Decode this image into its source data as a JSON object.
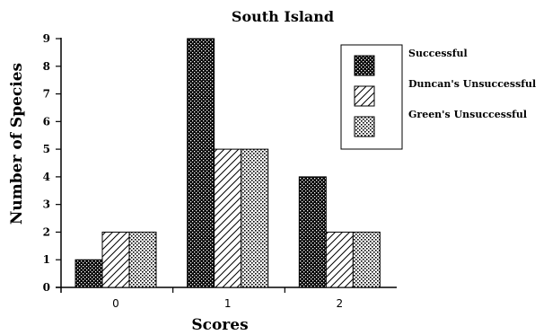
{
  "chart_data": {
    "type": "bar",
    "title": "South Island",
    "xlabel": "Scores",
    "ylabel": "Number of Species",
    "categories": [
      "0",
      "1",
      "2"
    ],
    "ylim": [
      0,
      9
    ],
    "yticks": [
      "0",
      "1",
      "2",
      "3",
      "4",
      "5",
      "6",
      "7",
      "8",
      "9"
    ],
    "grid": false,
    "legend_position": "top-right",
    "series": [
      {
        "name": "Successful",
        "values": [
          1,
          9,
          4
        ],
        "pattern": "dots-dense",
        "color": "#000000"
      },
      {
        "name": "Duncan's Unsuccessful",
        "values": [
          2,
          5,
          2
        ],
        "pattern": "diagonal-hatch",
        "color": "#000000"
      },
      {
        "name": "Green's Unsuccessful",
        "values": [
          2,
          5,
          2
        ],
        "pattern": "dots-light",
        "color": "#000000"
      }
    ]
  }
}
